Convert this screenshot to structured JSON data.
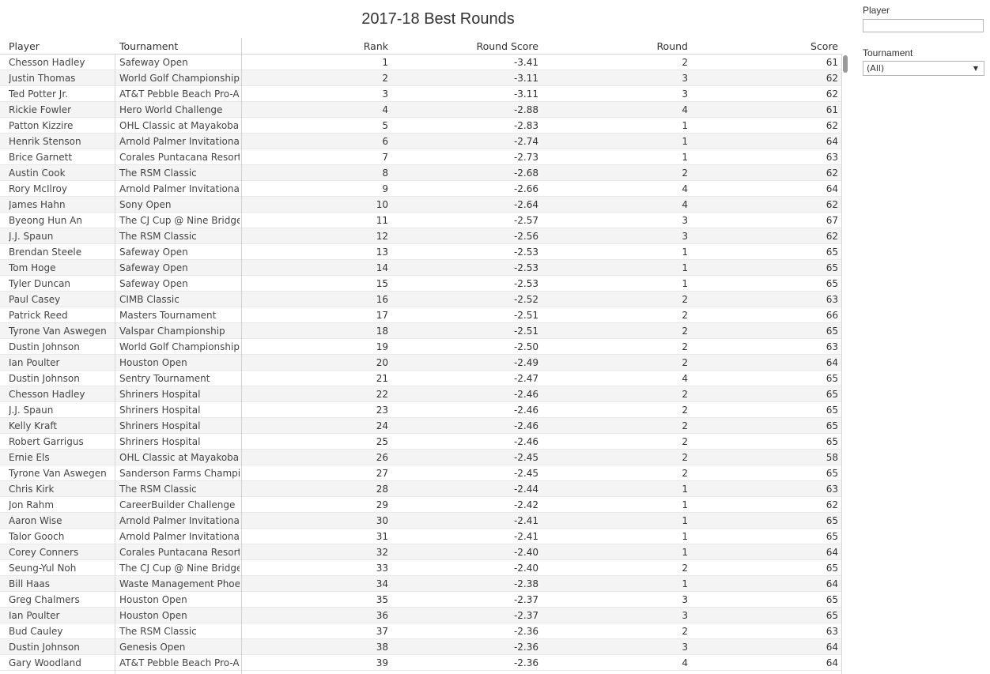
{
  "title": "2017-18 Best Rounds",
  "columns": {
    "player": "Player",
    "tournament": "Tournament",
    "rank": "Rank",
    "round_score": "Round Score",
    "round": "Round",
    "score": "Score"
  },
  "rows": [
    {
      "player": "Chesson Hadley",
      "tournament": "Safeway Open",
      "rank": "1",
      "round_score": "-3.41",
      "round": "2",
      "score": "61"
    },
    {
      "player": "Justin Thomas",
      "tournament": "World Golf Championship..",
      "rank": "2",
      "round_score": "-3.11",
      "round": "3",
      "score": "62"
    },
    {
      "player": "Ted Potter Jr.",
      "tournament": "AT&T Pebble Beach Pro-Am",
      "rank": "3",
      "round_score": "-3.11",
      "round": "3",
      "score": "62"
    },
    {
      "player": "Rickie Fowler",
      "tournament": "Hero World Challenge",
      "rank": "4",
      "round_score": "-2.88",
      "round": "4",
      "score": "61"
    },
    {
      "player": "Patton Kizzire",
      "tournament": "OHL Classic at Mayakoba",
      "rank": "5",
      "round_score": "-2.83",
      "round": "1",
      "score": "62"
    },
    {
      "player": "Henrik Stenson",
      "tournament": "Arnold Palmer Invitational",
      "rank": "6",
      "round_score": "-2.74",
      "round": "1",
      "score": "64"
    },
    {
      "player": "Brice Garnett",
      "tournament": "Corales Puntacana Resort..",
      "rank": "7",
      "round_score": "-2.73",
      "round": "1",
      "score": "63"
    },
    {
      "player": "Austin Cook",
      "tournament": "The RSM Classic",
      "rank": "8",
      "round_score": "-2.68",
      "round": "2",
      "score": "62"
    },
    {
      "player": "Rory McIlroy",
      "tournament": "Arnold Palmer Invitational",
      "rank": "9",
      "round_score": "-2.66",
      "round": "4",
      "score": "64"
    },
    {
      "player": "James Hahn",
      "tournament": "Sony Open",
      "rank": "10",
      "round_score": "-2.64",
      "round": "4",
      "score": "62"
    },
    {
      "player": "Byeong Hun An",
      "tournament": "The CJ Cup @ Nine Bridges",
      "rank": "11",
      "round_score": "-2.57",
      "round": "3",
      "score": "67"
    },
    {
      "player": "J.J. Spaun",
      "tournament": "The RSM Classic",
      "rank": "12",
      "round_score": "-2.56",
      "round": "3",
      "score": "62"
    },
    {
      "player": "Brendan Steele",
      "tournament": "Safeway Open",
      "rank": "13",
      "round_score": "-2.53",
      "round": "1",
      "score": "65"
    },
    {
      "player": "Tom Hoge",
      "tournament": "Safeway Open",
      "rank": "14",
      "round_score": "-2.53",
      "round": "1",
      "score": "65"
    },
    {
      "player": "Tyler Duncan",
      "tournament": "Safeway Open",
      "rank": "15",
      "round_score": "-2.53",
      "round": "1",
      "score": "65"
    },
    {
      "player": "Paul Casey",
      "tournament": "CIMB Classic",
      "rank": "16",
      "round_score": "-2.52",
      "round": "2",
      "score": "63"
    },
    {
      "player": "Patrick Reed",
      "tournament": "Masters Tournament",
      "rank": "17",
      "round_score": "-2.51",
      "round": "2",
      "score": "66"
    },
    {
      "player": "Tyrone Van Aswegen",
      "tournament": "Valspar Championship",
      "rank": "18",
      "round_score": "-2.51",
      "round": "2",
      "score": "65"
    },
    {
      "player": "Dustin Johnson",
      "tournament": "World Golf Championship..",
      "rank": "19",
      "round_score": "-2.50",
      "round": "2",
      "score": "63"
    },
    {
      "player": "Ian Poulter",
      "tournament": "Houston Open",
      "rank": "20",
      "round_score": "-2.49",
      "round": "2",
      "score": "64"
    },
    {
      "player": "Dustin Johnson",
      "tournament": "Sentry Tournament",
      "rank": "21",
      "round_score": "-2.47",
      "round": "4",
      "score": "65"
    },
    {
      "player": "Chesson Hadley",
      "tournament": "Shriners Hospital",
      "rank": "22",
      "round_score": "-2.46",
      "round": "2",
      "score": "65"
    },
    {
      "player": "J.J. Spaun",
      "tournament": "Shriners Hospital",
      "rank": "23",
      "round_score": "-2.46",
      "round": "2",
      "score": "65"
    },
    {
      "player": "Kelly Kraft",
      "tournament": "Shriners Hospital",
      "rank": "24",
      "round_score": "-2.46",
      "round": "2",
      "score": "65"
    },
    {
      "player": "Robert Garrigus",
      "tournament": "Shriners Hospital",
      "rank": "25",
      "round_score": "-2.46",
      "round": "2",
      "score": "65"
    },
    {
      "player": "Ernie Els",
      "tournament": "OHL Classic at Mayakoba",
      "rank": "26",
      "round_score": "-2.45",
      "round": "2",
      "score": "58"
    },
    {
      "player": "Tyrone Van Aswegen",
      "tournament": "Sanderson Farms Champi..",
      "rank": "27",
      "round_score": "-2.45",
      "round": "2",
      "score": "65"
    },
    {
      "player": "Chris Kirk",
      "tournament": "The RSM Classic",
      "rank": "28",
      "round_score": "-2.44",
      "round": "1",
      "score": "63"
    },
    {
      "player": "Jon Rahm",
      "tournament": "CareerBuilder Challenge",
      "rank": "29",
      "round_score": "-2.42",
      "round": "1",
      "score": "62"
    },
    {
      "player": "Aaron Wise",
      "tournament": "Arnold Palmer Invitational",
      "rank": "30",
      "round_score": "-2.41",
      "round": "1",
      "score": "65"
    },
    {
      "player": "Talor Gooch",
      "tournament": "Arnold Palmer Invitational",
      "rank": "31",
      "round_score": "-2.41",
      "round": "1",
      "score": "65"
    },
    {
      "player": "Corey Conners",
      "tournament": "Corales Puntacana Resort..",
      "rank": "32",
      "round_score": "-2.40",
      "round": "1",
      "score": "64"
    },
    {
      "player": "Seung-Yul Noh",
      "tournament": "The CJ Cup @ Nine Bridges",
      "rank": "33",
      "round_score": "-2.40",
      "round": "2",
      "score": "65"
    },
    {
      "player": "Bill Haas",
      "tournament": "Waste Management Phoe..",
      "rank": "34",
      "round_score": "-2.38",
      "round": "1",
      "score": "64"
    },
    {
      "player": "Greg Chalmers",
      "tournament": "Houston Open",
      "rank": "35",
      "round_score": "-2.37",
      "round": "3",
      "score": "65"
    },
    {
      "player": "Ian Poulter",
      "tournament": "Houston Open",
      "rank": "36",
      "round_score": "-2.37",
      "round": "3",
      "score": "65"
    },
    {
      "player": "Bud Cauley",
      "tournament": "The RSM Classic",
      "rank": "37",
      "round_score": "-2.36",
      "round": "2",
      "score": "63"
    },
    {
      "player": "Dustin Johnson",
      "tournament": "Genesis Open",
      "rank": "38",
      "round_score": "-2.36",
      "round": "3",
      "score": "64"
    },
    {
      "player": "Gary Woodland",
      "tournament": "AT&T Pebble Beach Pro-Am",
      "rank": "39",
      "round_score": "-2.36",
      "round": "4",
      "score": "64"
    }
  ],
  "filters": {
    "player": {
      "label": "Player",
      "value": ""
    },
    "tournament": {
      "label": "Tournament",
      "selected": "(All)"
    }
  }
}
